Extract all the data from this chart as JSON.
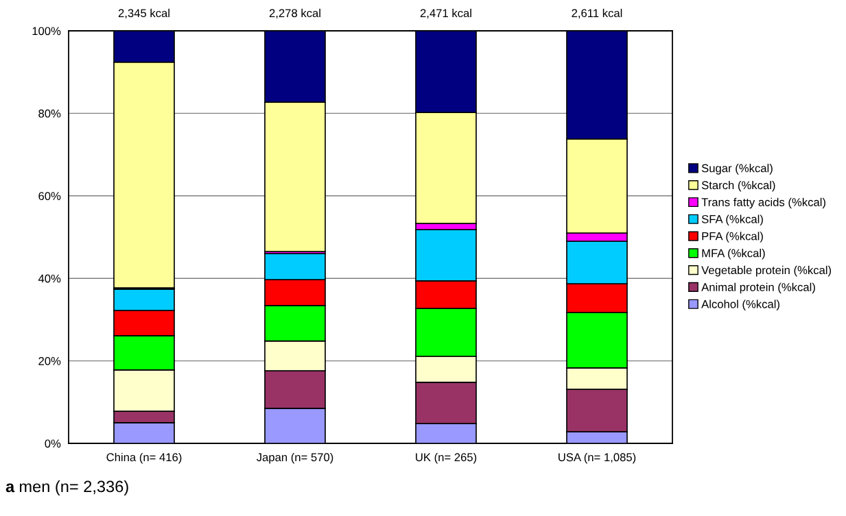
{
  "chart_data": {
    "type": "bar",
    "stacked": true,
    "categories": [
      "China (n= 416)",
      "Japan (n= 570)",
      "UK (n= 265)",
      "USA (n= 1,085)"
    ],
    "series": [
      {
        "name": "Alcohol (%kcal)",
        "color": "#9999ff",
        "values": [
          5.0,
          8.5,
          4.8,
          2.8
        ]
      },
      {
        "name": "Animal protein (%kcal)",
        "color": "#993366",
        "values": [
          2.8,
          9.1,
          10.0,
          10.3
        ]
      },
      {
        "name": "Vegetable protein (%kcal)",
        "color": "#ffffcc",
        "values": [
          10.0,
          7.2,
          6.3,
          5.2
        ]
      },
      {
        "name": "MFA (%kcal)",
        "color": "#00ff00",
        "values": [
          8.3,
          8.6,
          11.6,
          13.4
        ]
      },
      {
        "name": "PFA (%kcal)",
        "color": "#ff0000",
        "values": [
          6.1,
          6.3,
          6.7,
          7.0
        ]
      },
      {
        "name": "SFA (%kcal)",
        "color": "#00ccff",
        "values": [
          5.2,
          6.3,
          12.4,
          10.3
        ]
      },
      {
        "name": "Trans fatty acids (%kcal)",
        "color": "#ff00ff",
        "values": [
          0.3,
          0.5,
          1.5,
          2.0
        ]
      },
      {
        "name": "Starch (%kcal)",
        "color": "#ffff99",
        "values": [
          54.7,
          36.2,
          26.9,
          22.8
        ]
      },
      {
        "name": "Sugar (%kcal)",
        "color": "#000080",
        "values": [
          7.6,
          17.3,
          19.8,
          26.2
        ]
      }
    ],
    "ylim": [
      0,
      100
    ],
    "yticks": [
      {
        "value": 0,
        "label": "0%"
      },
      {
        "value": 20,
        "label": "20%"
      },
      {
        "value": 40,
        "label": "40%"
      },
      {
        "value": 60,
        "label": "60%"
      },
      {
        "value": 80,
        "label": "80%"
      },
      {
        "value": 100,
        "label": "100%"
      }
    ],
    "grid": "y",
    "legend": "right",
    "annotations": [
      {
        "text": "2,345 kcal",
        "x": "China (n= 416)",
        "y": 100
      },
      {
        "text": "2,278 kcal",
        "x": "Japan (n= 570)",
        "y": 100
      },
      {
        "text": "2,471 kcal",
        "x": "UK (n= 265)",
        "y": 100
      },
      {
        "text": "2,611 kcal",
        "x": "USA (n= 1,085)",
        "y": 100
      },
      "a men (n= 2,336)"
    ]
  }
}
